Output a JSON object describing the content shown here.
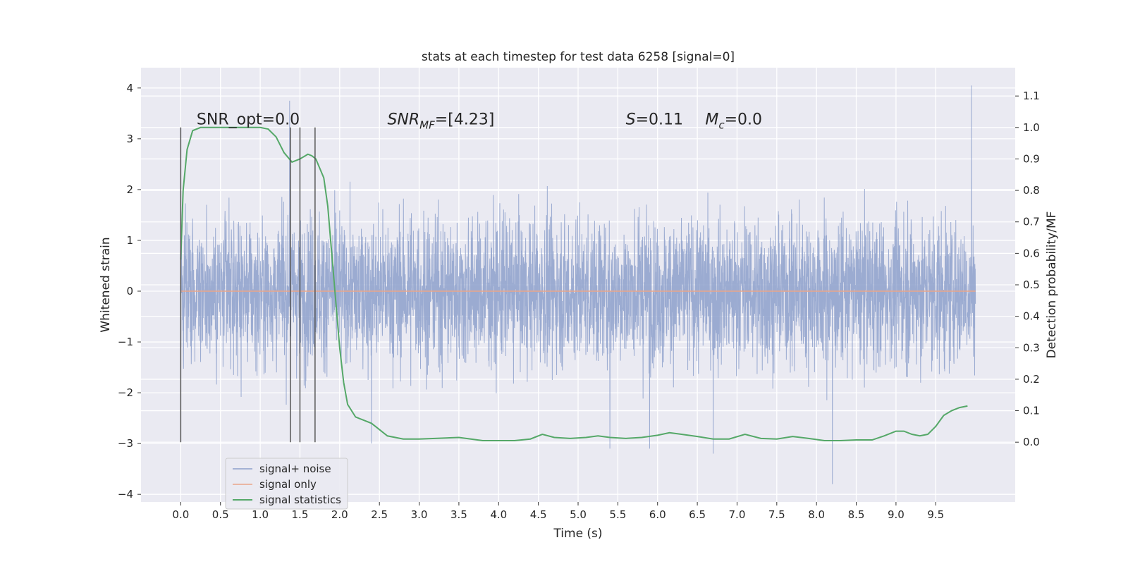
{
  "chart_data": {
    "type": "line",
    "title": "stats at each timestep for test data 6258 [signal=0]",
    "xlabel": "Time (s)",
    "ylabel": "Whitened strain",
    "y2label": "Detection probability/MF",
    "xlim": [
      -0.5,
      10.5
    ],
    "ylim": [
      -4.15,
      4.4
    ],
    "y2lim": [
      -0.19,
      1.19
    ],
    "x_ticks": [
      "0.0",
      "0.5",
      "1.0",
      "1.5",
      "2.0",
      "2.5",
      "3.0",
      "3.5",
      "4.0",
      "4.5",
      "5.0",
      "5.5",
      "6.0",
      "6.5",
      "7.0",
      "7.5",
      "8.0",
      "8.5",
      "9.0",
      "9.5"
    ],
    "y_ticks": [
      "4",
      "3",
      "2",
      "1",
      "0",
      "−1",
      "−2",
      "−3",
      "−4"
    ],
    "y2_ticks": [
      "1.1",
      "1.0",
      "0.9",
      "0.8",
      "0.7",
      "0.6",
      "0.5",
      "0.4",
      "0.3",
      "0.2",
      "0.1",
      "0.0"
    ],
    "grid": true,
    "legend_position": "lower-left",
    "annotations": [
      {
        "text": "SNR_opt=0.0"
      },
      {
        "base": "SNR",
        "sub": "MF",
        "rest": "=[4.23]"
      },
      {
        "base": "S",
        "rest": "=0.11"
      },
      {
        "base": "M",
        "sub": "c",
        "rest": "=0.0"
      }
    ],
    "vertical_markers_x": [
      0.0,
      1.38,
      1.5,
      1.69
    ],
    "series": [
      {
        "name": "signal+ noise",
        "color": "#8da0cb",
        "axis": "left",
        "style": "noise",
        "x_range": [
          0.0,
          10.0
        ],
        "typical_std": 0.75,
        "spikes": [
          [
            1.37,
            3.75
          ],
          [
            9.95,
            4.05
          ],
          [
            8.2,
            -3.8
          ],
          [
            6.7,
            -3.2
          ],
          [
            5.4,
            -3.1
          ],
          [
            5.9,
            -3.1
          ],
          [
            2.4,
            -3.0
          ]
        ]
      },
      {
        "name": "signal only",
        "color": "#e9a58a",
        "axis": "left",
        "x": [
          0.0,
          10.0
        ],
        "values": [
          0.0,
          0.0
        ]
      },
      {
        "name": "signal statistics",
        "color": "#55a868",
        "axis": "right",
        "x": [
          0.0,
          0.03,
          0.08,
          0.15,
          0.25,
          0.4,
          0.6,
          0.8,
          1.0,
          1.1,
          1.2,
          1.3,
          1.4,
          1.5,
          1.6,
          1.65,
          1.7,
          1.8,
          1.85,
          1.9,
          1.95,
          2.0,
          2.05,
          2.1,
          2.2,
          2.3,
          2.4,
          2.5,
          2.6,
          2.8,
          3.0,
          3.2,
          3.5,
          3.8,
          4.0,
          4.2,
          4.4,
          4.55,
          4.7,
          4.9,
          5.1,
          5.25,
          5.4,
          5.6,
          5.8,
          6.0,
          6.15,
          6.3,
          6.5,
          6.7,
          6.9,
          7.1,
          7.3,
          7.5,
          7.7,
          7.9,
          8.1,
          8.3,
          8.5,
          8.7,
          8.85,
          9.0,
          9.1,
          9.2,
          9.3,
          9.4,
          9.5,
          9.6,
          9.7,
          9.8,
          9.9
        ],
        "values": [
          0.58,
          0.8,
          0.93,
          0.99,
          1.0,
          1.0,
          1.0,
          1.0,
          1.0,
          0.995,
          0.97,
          0.92,
          0.89,
          0.9,
          0.915,
          0.91,
          0.9,
          0.84,
          0.75,
          0.6,
          0.45,
          0.3,
          0.19,
          0.12,
          0.08,
          0.07,
          0.06,
          0.04,
          0.02,
          0.01,
          0.01,
          0.012,
          0.015,
          0.005,
          0.005,
          0.005,
          0.01,
          0.025,
          0.015,
          0.012,
          0.015,
          0.02,
          0.015,
          0.012,
          0.015,
          0.022,
          0.03,
          0.025,
          0.018,
          0.01,
          0.01,
          0.025,
          0.012,
          0.01,
          0.018,
          0.012,
          0.005,
          0.005,
          0.007,
          0.007,
          0.02,
          0.035,
          0.035,
          0.025,
          0.02,
          0.025,
          0.05,
          0.085,
          0.1,
          0.11,
          0.115
        ]
      }
    ]
  }
}
